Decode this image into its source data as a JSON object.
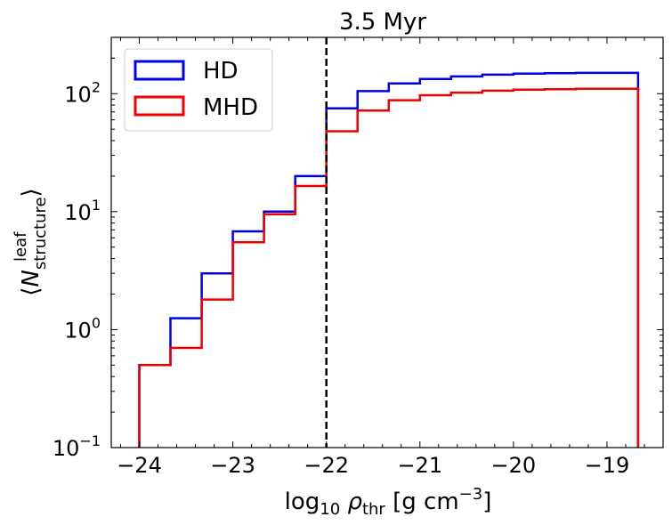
{
  "chart_data": {
    "type": "step-histogram",
    "title": "3.5 Myr",
    "xlabel": "log₁₀ ρ_thr [g cm⁻³]",
    "ylabel": "⟨N_structure^leaf⟩",
    "xlim": [
      -24.3,
      -18.4
    ],
    "ylim": [
      0.1,
      300
    ],
    "yscale": "log",
    "x_tick_labels": [
      "−24",
      "−23",
      "−22",
      "−21",
      "−20",
      "−19"
    ],
    "x_ticks": [
      -24,
      -23,
      -22,
      -21,
      -20,
      -19
    ],
    "y_tick_labels": [
      {
        "base": "10",
        "exp": "−1",
        "value": 0.1
      },
      {
        "base": "10",
        "exp": "0",
        "value": 1
      },
      {
        "base": "10",
        "exp": "1",
        "value": 10
      },
      {
        "base": "10",
        "exp": "2",
        "value": 100
      }
    ],
    "bin_edges": [
      -24.0,
      -23.667,
      -23.333,
      -23.0,
      -22.667,
      -22.333,
      -22.0,
      -21.667,
      -21.333,
      -21.0,
      -20.667,
      -20.333,
      -20.0,
      -19.667,
      -19.333,
      -19.0,
      -18.667
    ],
    "series": [
      {
        "name": "HD",
        "color": "#0000ee",
        "values": [
          0.5,
          1.25,
          3.0,
          6.8,
          10.0,
          20.0,
          75,
          105,
          122,
          133,
          140,
          145,
          148,
          149,
          150,
          150
        ]
      },
      {
        "name": "MHD",
        "color": "#ee0000",
        "values": [
          0.5,
          0.7,
          1.8,
          5.5,
          9.5,
          16.5,
          48,
          72,
          88,
          97,
          102,
          106,
          108,
          109,
          110,
          110
        ]
      }
    ],
    "vline": {
      "x": -22.0,
      "style": "dashed",
      "color": "#000000"
    },
    "legend": {
      "placement": "upper-left",
      "labels": [
        "HD",
        "MHD"
      ]
    }
  }
}
